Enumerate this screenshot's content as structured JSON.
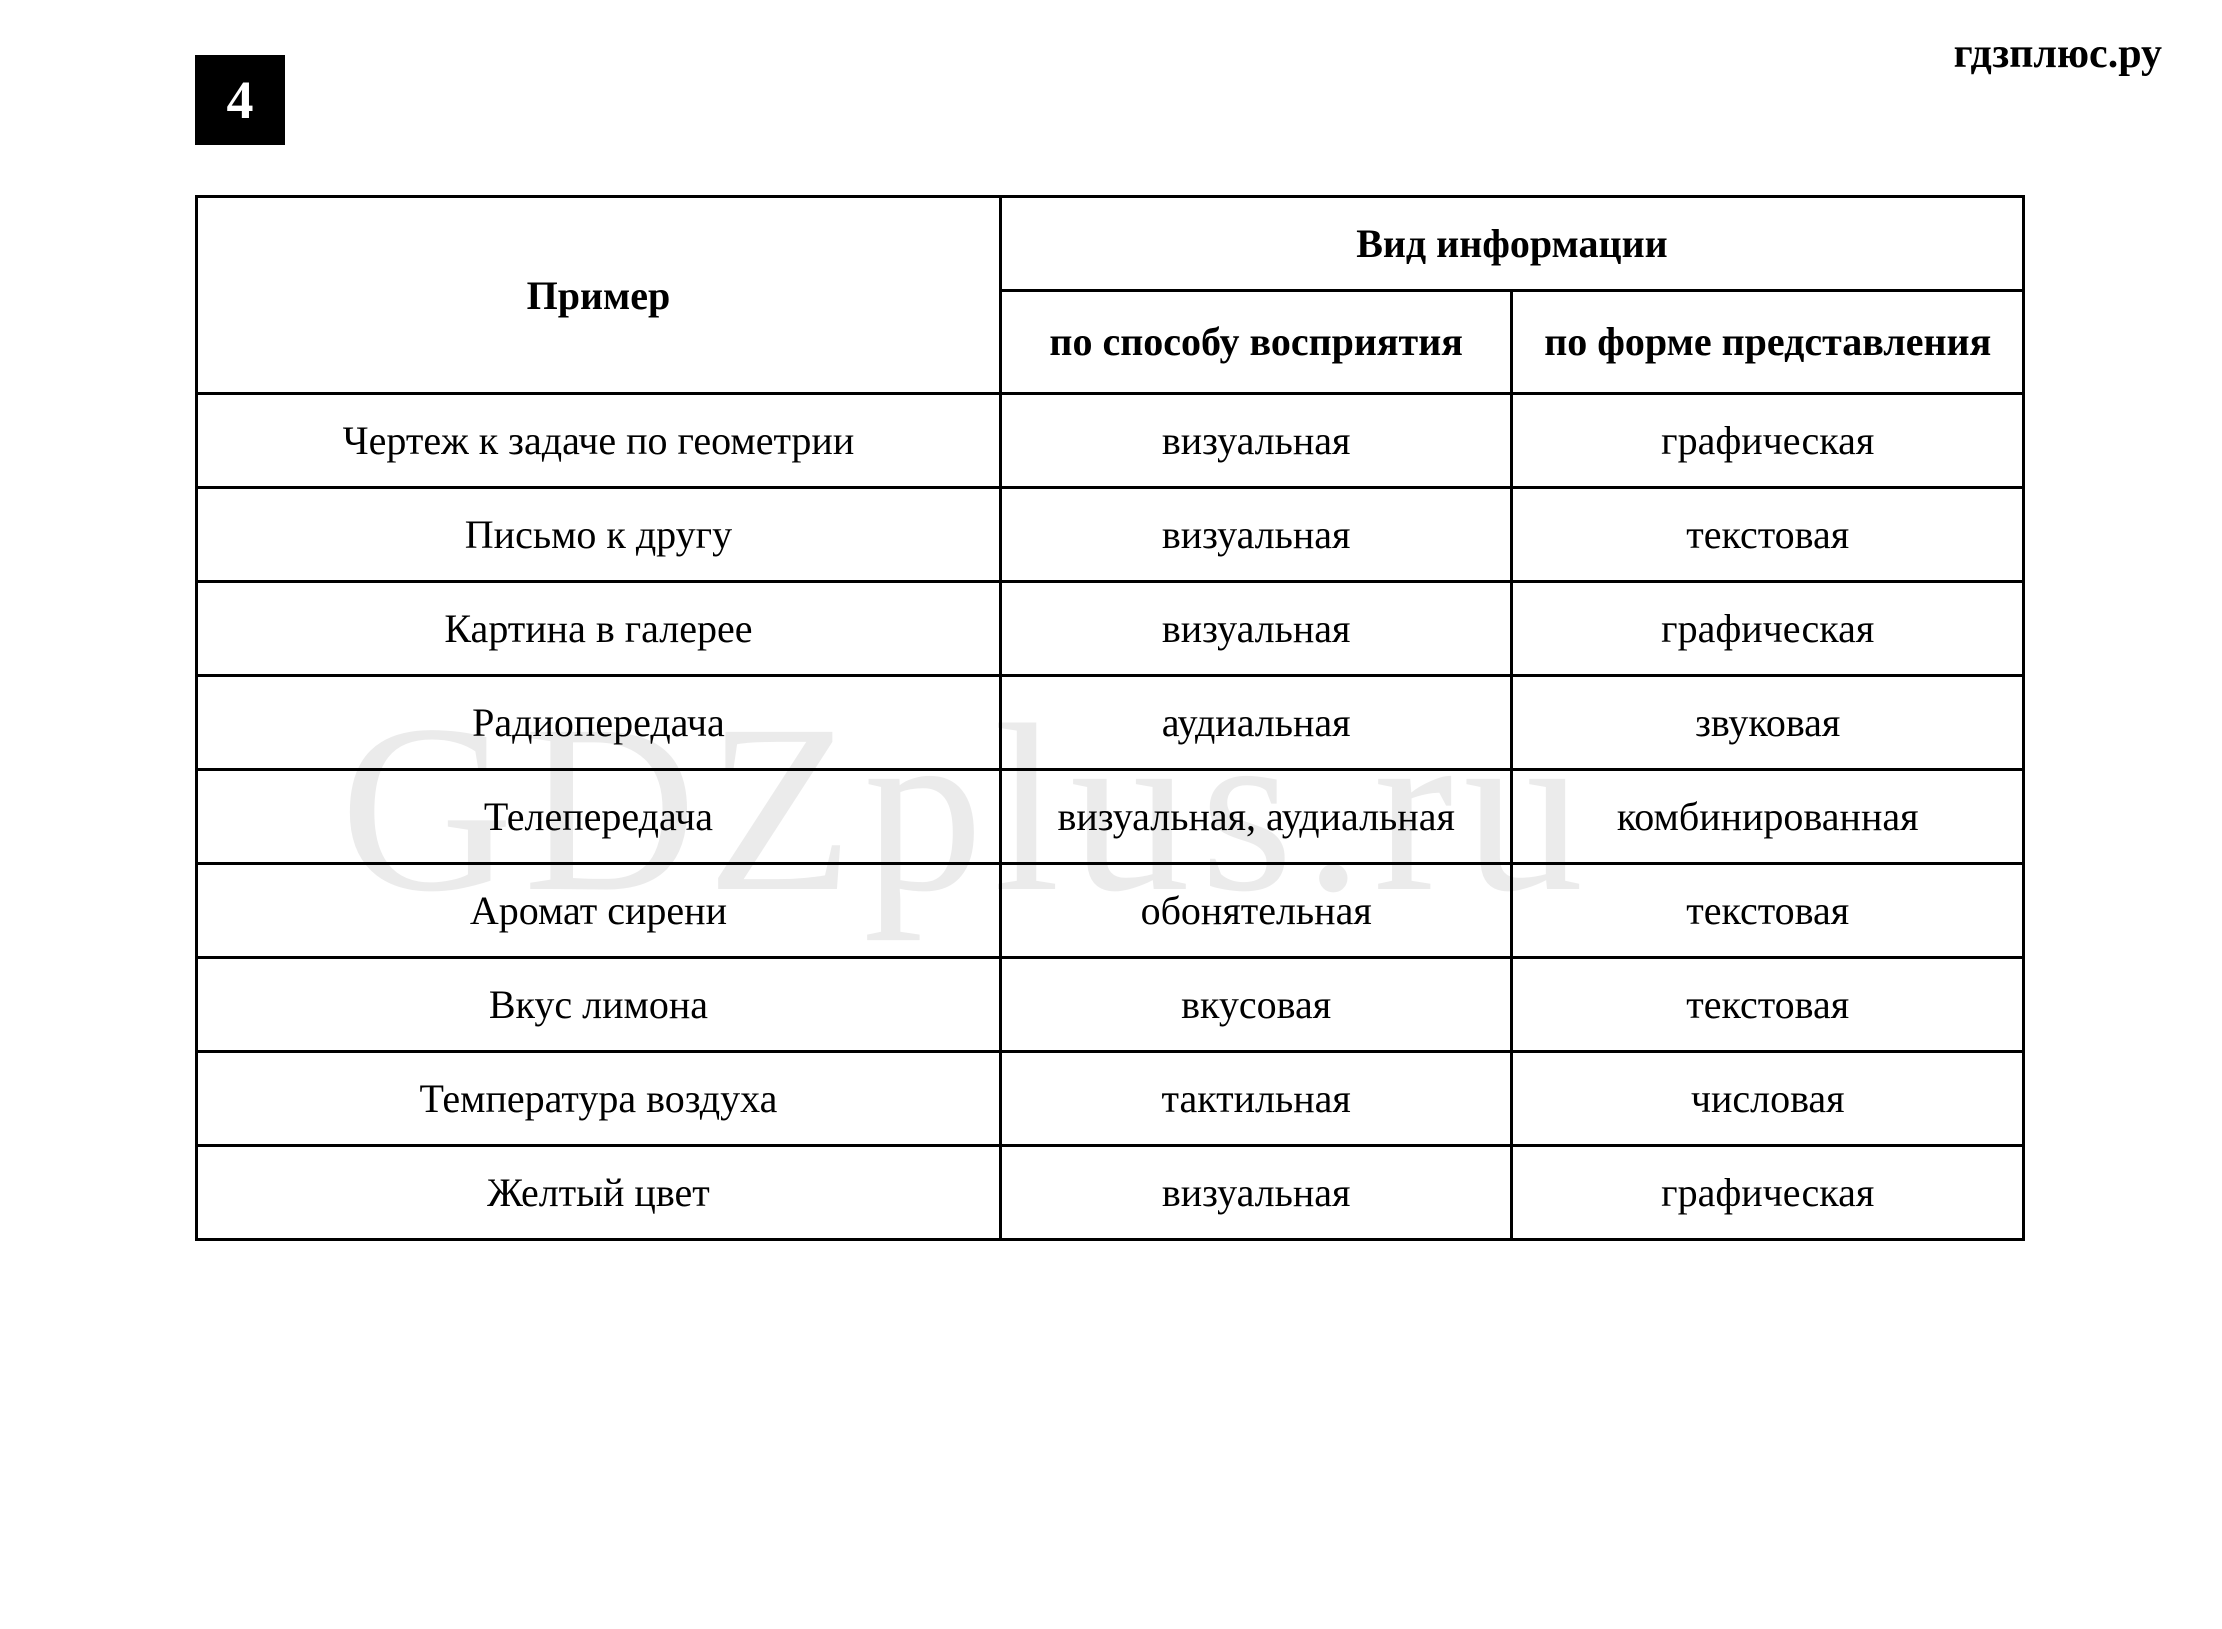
{
  "watermark_top": "гдзплюс.ру",
  "watermark_center": "GDZplus.ru",
  "badge_number": "4",
  "table": {
    "type": "table",
    "border_color": "#000000",
    "border_width": 3,
    "background_color": "#ffffff",
    "font_family": "Times New Roman",
    "header_fontsize": 40,
    "cell_fontsize": 40,
    "text_color": "#000000",
    "headers": {
      "col1": "Пример",
      "col2_group": "Вид информации",
      "col2a": "по способу восприятия",
      "col2b": "по форме представления"
    },
    "column_widths_percent": [
      44,
      28,
      28
    ],
    "rows": [
      {
        "example": "Чертеж к задаче по геометрии",
        "perception": "визуальная",
        "form": "графическая"
      },
      {
        "example": "Письмо к другу",
        "perception": "визуальная",
        "form": "текстовая"
      },
      {
        "example": "Картина в галерее",
        "perception": "визуальная",
        "form": "графическая"
      },
      {
        "example": "Радиопередача",
        "perception": "аудиальная",
        "form": "звуковая"
      },
      {
        "example": "Телепередача",
        "perception": "визуальная, аудиальная",
        "form": "комбинированная"
      },
      {
        "example": "Аромат сирени",
        "perception": "обонятельная",
        "form": "текстовая"
      },
      {
        "example": "Вкус лимона",
        "perception": "вкусовая",
        "form": "текстовая"
      },
      {
        "example": "Температура воздуха",
        "perception": "тактильная",
        "form": "числовая"
      },
      {
        "example": "Желтый цвет",
        "perception": "визуальная",
        "form": "графическая"
      }
    ]
  }
}
